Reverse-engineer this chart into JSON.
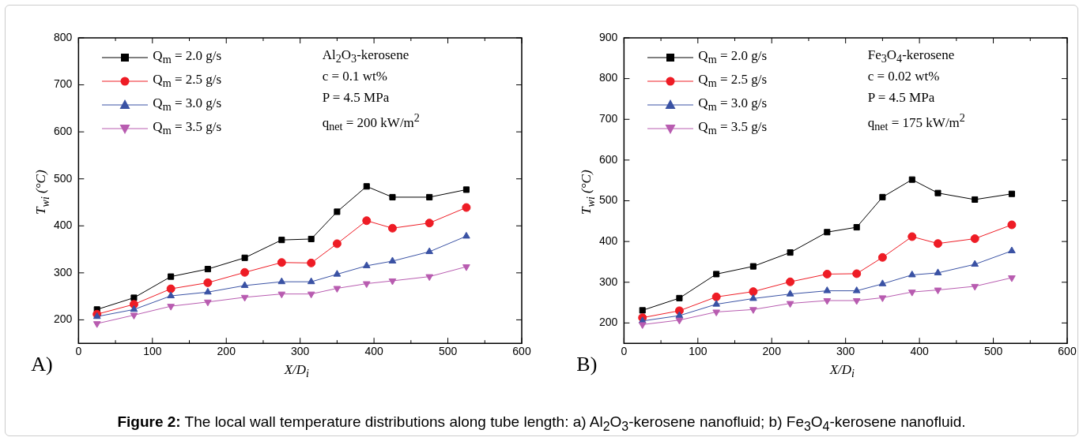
{
  "chart_data": [
    {
      "type": "line",
      "xlabel": "X/D$_{i}$",
      "ylabel": "T$_{wi}$ (°C)",
      "x": [
        25,
        75,
        125,
        175,
        225,
        275,
        315,
        350,
        390,
        425,
        475,
        525
      ],
      "xlim": [
        0,
        600
      ],
      "xticks": [
        0,
        100,
        200,
        300,
        400,
        500,
        600
      ],
      "ylim": [
        150,
        800
      ],
      "yticks": [
        200,
        300,
        400,
        500,
        600,
        700,
        800
      ],
      "legend": "top left",
      "annotations": [
        "A)",
        "Al$_{2}$O$_{3}$-kerosene",
        "c = 0.1 wt%",
        "P = 4.5 MPa",
        "q$_{net}$ = 200 kW/m$^{2}$",
        "Figure 2: The local wall temperature distributions along tube length: a) Al$_{2}$O$_{3}$-kerosene nanofluid; b) Fe$_{3}$O$_{4}$-kerosene nanofluid."
      ],
      "series": [
        {
          "name": "Q$_{m}$ = 2.0 g/s",
          "color": "#000000",
          "marker": "square",
          "values": [
            222,
            247,
            292,
            308,
            332,
            370,
            372,
            430,
            484,
            461,
            461,
            477
          ]
        },
        {
          "name": "Q$_{m}$ = 2.5 g/s",
          "color": "#ee1c25",
          "marker": "circle",
          "values": [
            212,
            233,
            266,
            279,
            301,
            322,
            321,
            362,
            411,
            395,
            406,
            439
          ]
        },
        {
          "name": "Q$_{m}$ = 3.0 g/s",
          "color": "#3a52a4",
          "marker": "triangle",
          "values": [
            207,
            222,
            251,
            259,
            273,
            281,
            281,
            297,
            315,
            325,
            345,
            378
          ]
        },
        {
          "name": "Q$_{m}$ = 3.5 g/s",
          "color": "#b85cb0",
          "marker": "triangle-down",
          "values": [
            192,
            210,
            229,
            238,
            248,
            255,
            255,
            267,
            277,
            283,
            292,
            313
          ]
        }
      ]
    },
    {
      "type": "line",
      "xlabel": "X/D$_{i}$",
      "ylabel": "T$_{wi}$ (°C)",
      "x": [
        25,
        75,
        125,
        175,
        225,
        275,
        315,
        350,
        390,
        425,
        475,
        525
      ],
      "xlim": [
        0,
        600
      ],
      "xticks": [
        0,
        100,
        200,
        300,
        400,
        500,
        600
      ],
      "ylim": [
        150,
        900
      ],
      "yticks": [
        200,
        300,
        400,
        500,
        600,
        700,
        800,
        900
      ],
      "legend": "top left",
      "annotations": [
        "B)",
        "Fe$_{3}$O$_{4}$-kerosene",
        "c = 0.02 wt%",
        "P = 4.5 MPa",
        "q$_{net}$ = 175 kW/m$^{2}$"
      ],
      "series": [
        {
          "name": "Q$_{m}$ = 2.0 g/s",
          "color": "#000000",
          "marker": "square",
          "values": [
            231,
            261,
            320,
            339,
            373,
            423,
            435,
            509,
            552,
            519,
            503,
            517
          ]
        },
        {
          "name": "Q$_{m}$ = 2.5 g/s",
          "color": "#ee1c25",
          "marker": "circle",
          "values": [
            213,
            230,
            264,
            277,
            301,
            320,
            321,
            361,
            412,
            395,
            407,
            441
          ]
        },
        {
          "name": "Q$_{m}$ = 3.0 g/s",
          "color": "#3a52a4",
          "marker": "triangle",
          "values": [
            205,
            218,
            246,
            260,
            271,
            279,
            279,
            296,
            318,
            323,
            344,
            377
          ]
        },
        {
          "name": "Q$_{m}$ = 3.5 g/s",
          "color": "#b85cb0",
          "marker": "triangle-down",
          "values": [
            196,
            207,
            227,
            233,
            248,
            255,
            255,
            262,
            276,
            281,
            290,
            311
          ]
        }
      ]
    }
  ]
}
